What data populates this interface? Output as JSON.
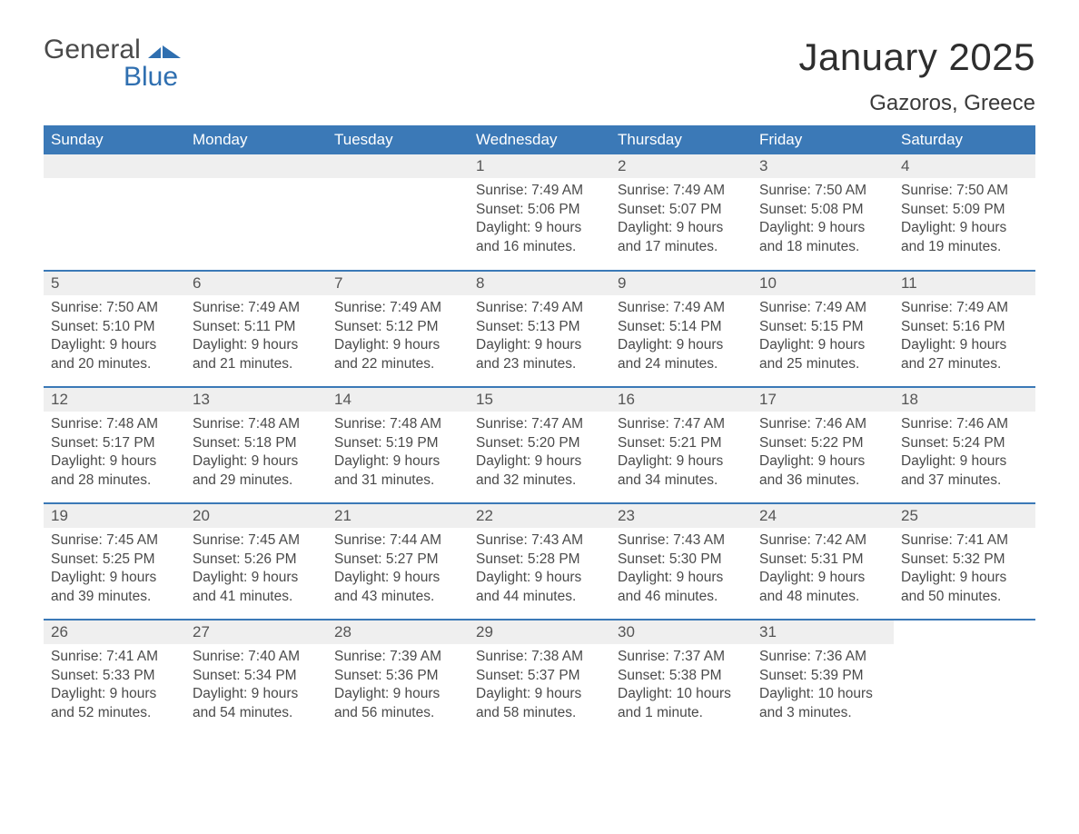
{
  "brand": {
    "line1": "General",
    "line2": "Blue",
    "accent_color": "#2f6fb0"
  },
  "header": {
    "month_title": "January 2025",
    "location": "Gazoros, Greece"
  },
  "colors": {
    "header_bg": "#3b79b7",
    "header_text": "#ffffff",
    "daynum_bg": "#efefef",
    "text": "#4a4a4a",
    "rule": "#3b79b7"
  },
  "day_names": [
    "Sunday",
    "Monday",
    "Tuesday",
    "Wednesday",
    "Thursday",
    "Friday",
    "Saturday"
  ],
  "weeks": [
    [
      null,
      null,
      null,
      {
        "n": "1",
        "sr": "7:49 AM",
        "ss": "5:06 PM",
        "dl": "9 hours and 16 minutes."
      },
      {
        "n": "2",
        "sr": "7:49 AM",
        "ss": "5:07 PM",
        "dl": "9 hours and 17 minutes."
      },
      {
        "n": "3",
        "sr": "7:50 AM",
        "ss": "5:08 PM",
        "dl": "9 hours and 18 minutes."
      },
      {
        "n": "4",
        "sr": "7:50 AM",
        "ss": "5:09 PM",
        "dl": "9 hours and 19 minutes."
      }
    ],
    [
      {
        "n": "5",
        "sr": "7:50 AM",
        "ss": "5:10 PM",
        "dl": "9 hours and 20 minutes."
      },
      {
        "n": "6",
        "sr": "7:49 AM",
        "ss": "5:11 PM",
        "dl": "9 hours and 21 minutes."
      },
      {
        "n": "7",
        "sr": "7:49 AM",
        "ss": "5:12 PM",
        "dl": "9 hours and 22 minutes."
      },
      {
        "n": "8",
        "sr": "7:49 AM",
        "ss": "5:13 PM",
        "dl": "9 hours and 23 minutes."
      },
      {
        "n": "9",
        "sr": "7:49 AM",
        "ss": "5:14 PM",
        "dl": "9 hours and 24 minutes."
      },
      {
        "n": "10",
        "sr": "7:49 AM",
        "ss": "5:15 PM",
        "dl": "9 hours and 25 minutes."
      },
      {
        "n": "11",
        "sr": "7:49 AM",
        "ss": "5:16 PM",
        "dl": "9 hours and 27 minutes."
      }
    ],
    [
      {
        "n": "12",
        "sr": "7:48 AM",
        "ss": "5:17 PM",
        "dl": "9 hours and 28 minutes."
      },
      {
        "n": "13",
        "sr": "7:48 AM",
        "ss": "5:18 PM",
        "dl": "9 hours and 29 minutes."
      },
      {
        "n": "14",
        "sr": "7:48 AM",
        "ss": "5:19 PM",
        "dl": "9 hours and 31 minutes."
      },
      {
        "n": "15",
        "sr": "7:47 AM",
        "ss": "5:20 PM",
        "dl": "9 hours and 32 minutes."
      },
      {
        "n": "16",
        "sr": "7:47 AM",
        "ss": "5:21 PM",
        "dl": "9 hours and 34 minutes."
      },
      {
        "n": "17",
        "sr": "7:46 AM",
        "ss": "5:22 PM",
        "dl": "9 hours and 36 minutes."
      },
      {
        "n": "18",
        "sr": "7:46 AM",
        "ss": "5:24 PM",
        "dl": "9 hours and 37 minutes."
      }
    ],
    [
      {
        "n": "19",
        "sr": "7:45 AM",
        "ss": "5:25 PM",
        "dl": "9 hours and 39 minutes."
      },
      {
        "n": "20",
        "sr": "7:45 AM",
        "ss": "5:26 PM",
        "dl": "9 hours and 41 minutes."
      },
      {
        "n": "21",
        "sr": "7:44 AM",
        "ss": "5:27 PM",
        "dl": "9 hours and 43 minutes."
      },
      {
        "n": "22",
        "sr": "7:43 AM",
        "ss": "5:28 PM",
        "dl": "9 hours and 44 minutes."
      },
      {
        "n": "23",
        "sr": "7:43 AM",
        "ss": "5:30 PM",
        "dl": "9 hours and 46 minutes."
      },
      {
        "n": "24",
        "sr": "7:42 AM",
        "ss": "5:31 PM",
        "dl": "9 hours and 48 minutes."
      },
      {
        "n": "25",
        "sr": "7:41 AM",
        "ss": "5:32 PM",
        "dl": "9 hours and 50 minutes."
      }
    ],
    [
      {
        "n": "26",
        "sr": "7:41 AM",
        "ss": "5:33 PM",
        "dl": "9 hours and 52 minutes."
      },
      {
        "n": "27",
        "sr": "7:40 AM",
        "ss": "5:34 PM",
        "dl": "9 hours and 54 minutes."
      },
      {
        "n": "28",
        "sr": "7:39 AM",
        "ss": "5:36 PM",
        "dl": "9 hours and 56 minutes."
      },
      {
        "n": "29",
        "sr": "7:38 AM",
        "ss": "5:37 PM",
        "dl": "9 hours and 58 minutes."
      },
      {
        "n": "30",
        "sr": "7:37 AM",
        "ss": "5:38 PM",
        "dl": "10 hours and 1 minute."
      },
      {
        "n": "31",
        "sr": "7:36 AM",
        "ss": "5:39 PM",
        "dl": "10 hours and 3 minutes."
      },
      null
    ]
  ],
  "labels": {
    "sunrise": "Sunrise: ",
    "sunset": "Sunset: ",
    "daylight": "Daylight: "
  }
}
